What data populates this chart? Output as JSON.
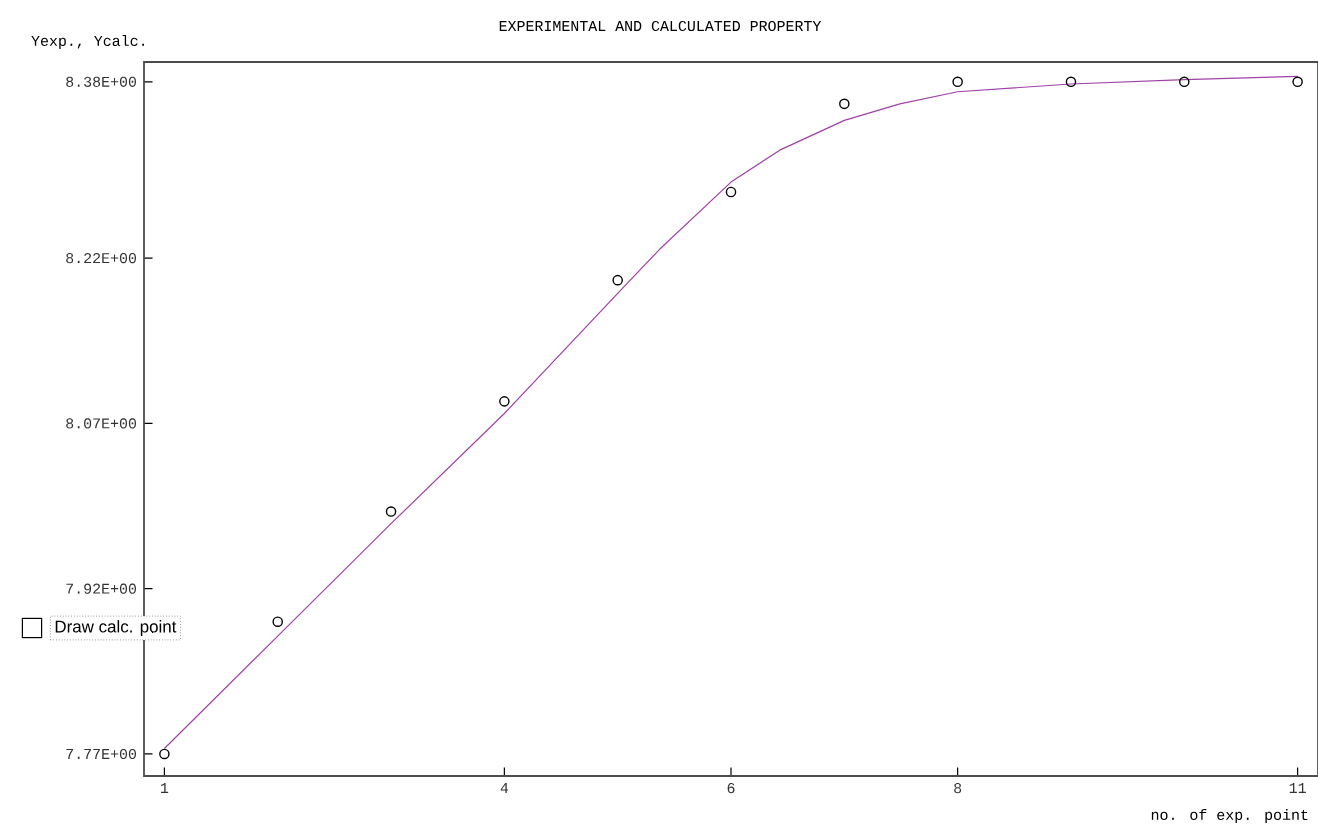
{
  "chart_data": {
    "type": "line",
    "title": "EXPERIMENTAL AND CALCULATED PROPERTY",
    "xlabel": "no. of exp. point",
    "ylabel": "Yexp., Ycalc.",
    "xlim": [
      0.82,
      11.18
    ],
    "ylim": [
      7.75,
      8.398
    ],
    "xticks": [
      1,
      4,
      6,
      8,
      11
    ],
    "yticks": [
      {
        "value": 7.77,
        "label": "7.77E+00"
      },
      {
        "value": 7.92,
        "label": "7.92E+00"
      },
      {
        "value": 8.07,
        "label": "8.07E+00"
      },
      {
        "value": 8.22,
        "label": "8.22E+00"
      },
      {
        "value": 8.38,
        "label": "8.38E+00"
      }
    ],
    "grid": false,
    "annotations": [
      "Draw calc. point"
    ],
    "series": [
      {
        "type": "scatter",
        "color": "#000000",
        "marker": "circle",
        "x": [
          1,
          2,
          3,
          4,
          5,
          6,
          7,
          8,
          9,
          10,
          11
        ],
        "values": [
          7.77,
          7.89,
          7.99,
          8.09,
          8.2,
          8.28,
          8.36,
          8.38,
          8.38,
          8.38,
          8.38
        ]
      },
      {
        "color": "#a040a8",
        "marker": "none",
        "line_style": "solid",
        "x": [
          1,
          2,
          3,
          4,
          5,
          5.37,
          6,
          6.43,
          7,
          7.49,
          8,
          9,
          10,
          11
        ],
        "values": [
          7.775,
          7.877,
          7.979,
          8.079,
          8.188,
          8.228,
          8.289,
          8.318,
          8.345,
          8.36,
          8.371,
          8.378,
          8.382,
          8.385
        ]
      }
    ]
  }
}
